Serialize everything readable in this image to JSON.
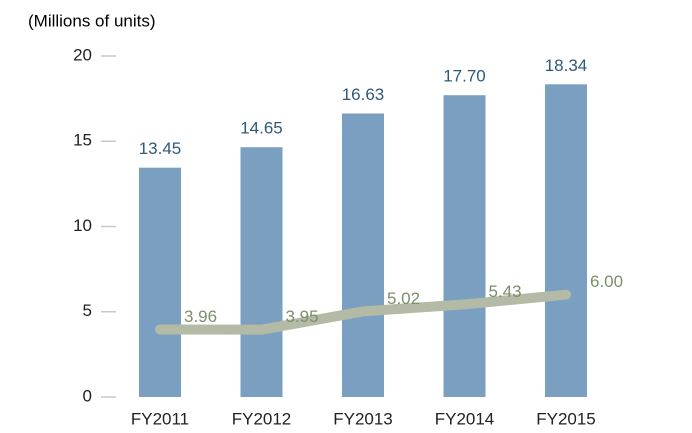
{
  "chart_data": {
    "type": "bar-line",
    "axis_label": "(Millions of units)",
    "categories": [
      "FY2011",
      "FY2012",
      "FY2013",
      "FY2014",
      "FY2015"
    ],
    "series": [
      {
        "type": "bar",
        "color": "#7a9fc0",
        "values": [
          13.45,
          14.65,
          16.63,
          17.7,
          18.34
        ],
        "value_labels": [
          "13.45",
          "14.65",
          "16.63",
          "17.70",
          "18.34"
        ],
        "label_color": "#2e5a7a"
      },
      {
        "type": "line",
        "color": "#b3bba6",
        "values": [
          3.96,
          3.95,
          5.02,
          5.43,
          6.0
        ],
        "value_labels": [
          "3.96",
          "3.95",
          "5.02",
          "5.43",
          "6.00"
        ],
        "label_color": "#7a8f6a"
      }
    ],
    "ylim": [
      0,
      20
    ],
    "yticks": [
      0,
      5,
      10,
      15,
      20
    ]
  }
}
